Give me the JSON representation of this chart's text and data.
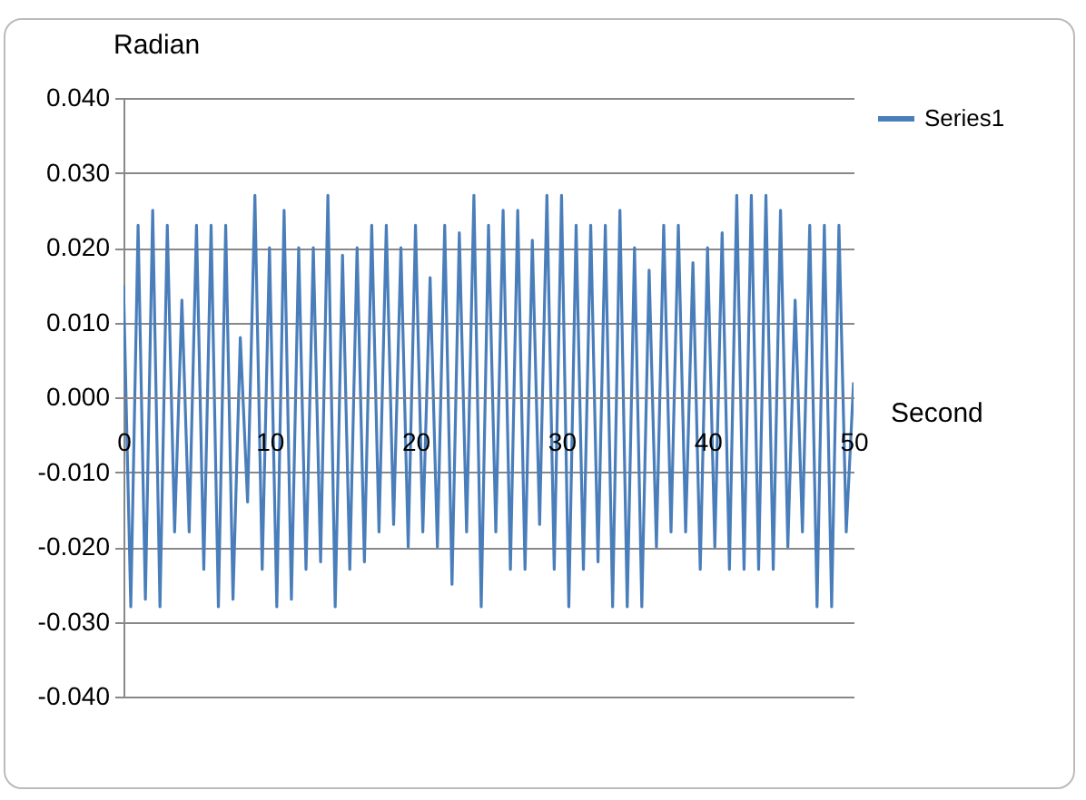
{
  "chart_data": {
    "type": "line",
    "xlabel": "Second",
    "ylabel": "Radian",
    "x": [
      0,
      0.5,
      1,
      1.5,
      2,
      2.5,
      3,
      3.5,
      4,
      4.5,
      5,
      5.5,
      6,
      6.5,
      7,
      7.5,
      8,
      8.5,
      9,
      9.5,
      10,
      10.5,
      11,
      11.5,
      12,
      12.5,
      13,
      13.5,
      14,
      14.5,
      15,
      15.5,
      16,
      16.5,
      17,
      17.5,
      18,
      18.5,
      19,
      19.5,
      20,
      20.5,
      21,
      21.5,
      22,
      22.5,
      23,
      23.5,
      24,
      24.5,
      25,
      25.5,
      26,
      26.5,
      27,
      27.5,
      28,
      28.5,
      29,
      29.5,
      30,
      30.5,
      31,
      31.5,
      32,
      32.5,
      33,
      33.5,
      34,
      34.5,
      35,
      35.5,
      36,
      36.5,
      37,
      37.5,
      38,
      38.5,
      39,
      39.5,
      40,
      40.5,
      41,
      41.5,
      42,
      42.5,
      43,
      43.5,
      44,
      44.5,
      45,
      45.5,
      46,
      46.5,
      47,
      47.5,
      48,
      48.5,
      49,
      49.5,
      50
    ],
    "series": [
      {
        "name": "Series1",
        "color": "#4a7ebb",
        "values": [
          0.015,
          -0.028,
          0.023,
          -0.027,
          0.025,
          -0.028,
          0.023,
          -0.018,
          0.013,
          -0.018,
          0.023,
          -0.023,
          0.023,
          -0.028,
          0.023,
          -0.027,
          0.008,
          -0.014,
          0.027,
          -0.023,
          0.02,
          -0.028,
          0.025,
          -0.027,
          0.02,
          -0.023,
          0.02,
          -0.022,
          0.027,
          -0.028,
          0.019,
          -0.023,
          0.02,
          -0.022,
          0.023,
          -0.018,
          0.023,
          -0.017,
          0.02,
          -0.02,
          0.023,
          -0.018,
          0.016,
          -0.02,
          0.023,
          -0.025,
          0.022,
          -0.018,
          0.027,
          -0.028,
          0.023,
          -0.018,
          0.025,
          -0.023,
          0.025,
          -0.023,
          0.021,
          -0.017,
          0.027,
          -0.023,
          0.027,
          -0.028,
          0.023,
          -0.023,
          0.023,
          -0.022,
          0.023,
          -0.028,
          0.025,
          -0.028,
          0.02,
          -0.028,
          0.017,
          -0.02,
          0.023,
          -0.018,
          0.023,
          -0.018,
          0.018,
          -0.023,
          0.02,
          -0.02,
          0.022,
          -0.023,
          0.027,
          -0.023,
          0.027,
          -0.023,
          0.027,
          -0.023,
          0.025,
          -0.02,
          0.013,
          -0.018,
          0.023,
          -0.028,
          0.023,
          -0.028,
          0.023,
          -0.018,
          0.002
        ]
      }
    ],
    "xlim": [
      0,
      50
    ],
    "xticks": [
      0,
      10,
      20,
      30,
      40,
      50
    ],
    "ylim": [
      -0.04,
      0.04
    ],
    "yticks": [
      {
        "value": -0.04,
        "label": "-0.040"
      },
      {
        "value": -0.03,
        "label": "-0.030"
      },
      {
        "value": -0.02,
        "label": "-0.020"
      },
      {
        "value": -0.01,
        "label": "-0.010"
      },
      {
        "value": 0,
        "label": "0.000"
      },
      {
        "value": 0.01,
        "label": "0.010"
      },
      {
        "value": 0.02,
        "label": "0.020"
      },
      {
        "value": 0.03,
        "label": "0.030"
      },
      {
        "value": 0.04,
        "label": "0.040"
      }
    ],
    "grid": "y",
    "legend": "top right",
    "marker": "none",
    "line_style": "solid"
  }
}
